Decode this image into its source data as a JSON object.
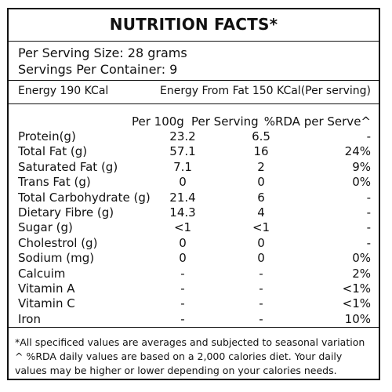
{
  "panel": {
    "title": "NUTRITION FACTS*",
    "serving_size": "Per Serving Size: 28 grams",
    "servings_per_container": "Servings Per Container: 9",
    "energy": "Energy 190 KCal",
    "energy_from_fat": "Energy From Fat 150 KCal(Per serving)"
  },
  "table": {
    "headers": [
      "Per 100g",
      "Per Serving",
      "%RDA per Serve^"
    ],
    "rows": [
      {
        "name": "Protein(g)",
        "per100": "23.2",
        "serving": "6.5",
        "rda": "-"
      },
      {
        "name": "Total Fat (g)",
        "per100": "57.1",
        "serving": "16",
        "rda": "24%"
      },
      {
        "name": "Saturated Fat (g)",
        "per100": "7.1",
        "serving": "2",
        "rda": "9%"
      },
      {
        "name": "Trans Fat (g)",
        "per100": "0",
        "serving": "0",
        "rda": "0%"
      },
      {
        "name": "Total Carbohydrate (g)",
        "per100": "21.4",
        "serving": "6",
        "rda": "-"
      },
      {
        "name": "Dietary Fibre (g)",
        "per100": "14.3",
        "serving": "4",
        "rda": "-"
      },
      {
        "name": "Sugar (g)",
        "per100": "<1",
        "serving": "<1",
        "rda": "-"
      },
      {
        "name": "Cholestrol (g)",
        "per100": "0",
        "serving": "0",
        "rda": "-"
      },
      {
        "name": "Sodium (mg)",
        "per100": "0",
        "serving": "0",
        "rda": "0%"
      },
      {
        "name": "Calcuim",
        "per100": "-",
        "serving": "-",
        "rda": "2%"
      },
      {
        "name": "Vitamin A",
        "per100": "-",
        "serving": "-",
        "rda": "<1%"
      },
      {
        "name": "Vitamin C",
        "per100": "-",
        "serving": "-",
        "rda": "<1%"
      },
      {
        "name": "Iron",
        "per100": "-",
        "serving": "-",
        "rda": "10%"
      }
    ]
  },
  "footnote": {
    "line1": "*All specificed values are averages and subjected to seasonal variation",
    "line2": "^ %RDA daily values are based on a 2,000 calories diet. Your daily",
    "line3": "values may be higher or lower depending on your calories needs."
  }
}
